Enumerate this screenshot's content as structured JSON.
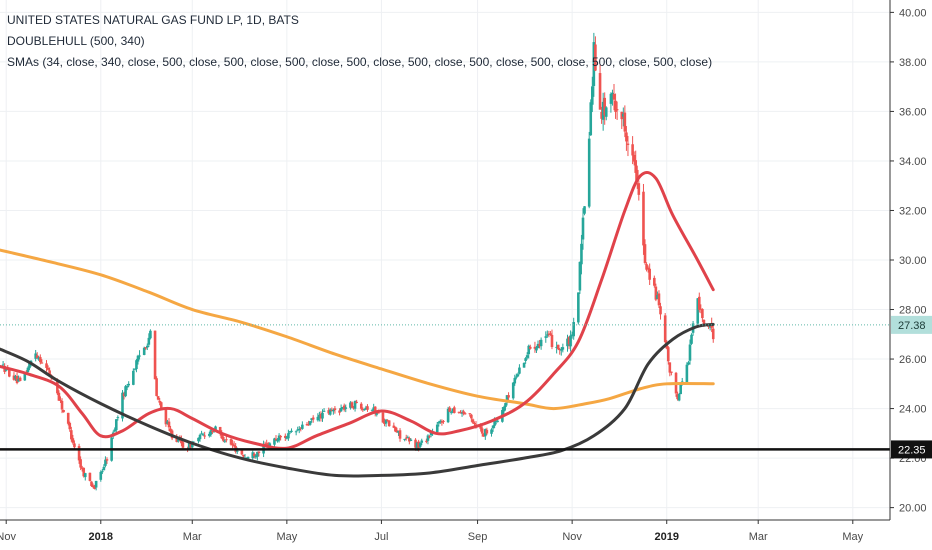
{
  "legend": {
    "title": "UNITED STATES NATURAL GAS FUND LP, 1D, BATS",
    "indicator1": "DOUBLEHULL (500, 340)",
    "indicator2": "SMAs (34, close, 340, close, 500, close, 500, close, 500, close, 500, close, 500, close, 500, close, 500, close, 500, close, 500, close)"
  },
  "colors": {
    "up": "#26a69a",
    "down": "#ef5350",
    "sma_orange": "#f5a743",
    "sma_red": "#e0424a",
    "hull_black": "#3a3a3a",
    "support_line": "#111111",
    "price_line": "#5fb8a8",
    "grid": "#eef0f3",
    "axis": "#333333"
  },
  "chart_data": {
    "type": "candlestick",
    "x_range": [
      "2017-10-28",
      "2019-05-25"
    ],
    "y_range": [
      19.5,
      40.5
    ],
    "y_ticks": [
      "40.00",
      "38.00",
      "36.00",
      "34.00",
      "32.00",
      "30.00",
      "28.00",
      "26.00",
      "24.00",
      "22.00",
      "20.00"
    ],
    "x_ticks": [
      {
        "date": "2017-11-01",
        "label": "Nov",
        "bold": false
      },
      {
        "date": "2018-01-01",
        "label": "2018",
        "bold": true
      },
      {
        "date": "2018-03-01",
        "label": "Mar",
        "bold": false
      },
      {
        "date": "2018-05-01",
        "label": "May",
        "bold": false
      },
      {
        "date": "2018-07-01",
        "label": "Jul",
        "bold": false
      },
      {
        "date": "2018-09-01",
        "label": "Sep",
        "bold": false
      },
      {
        "date": "2018-11-01",
        "label": "Nov",
        "bold": false
      },
      {
        "date": "2019-01-01",
        "label": "2019",
        "bold": true
      },
      {
        "date": "2019-03-01",
        "label": "Mar",
        "bold": false
      },
      {
        "date": "2019-05-01",
        "label": "May",
        "bold": false
      }
    ],
    "price_anchors": [
      [
        "2017-10-28",
        25.8
      ],
      [
        "2017-11-10",
        25.0
      ],
      [
        "2017-11-20",
        26.3
      ],
      [
        "2017-12-01",
        25.2
      ],
      [
        "2017-12-10",
        23.5
      ],
      [
        "2017-12-20",
        21.5
      ],
      [
        "2017-12-28",
        20.8
      ],
      [
        "2018-01-05",
        22.0
      ],
      [
        "2018-01-15",
        24.5
      ],
      [
        "2018-01-25",
        26.0
      ],
      [
        "2018-02-02",
        27.0
      ],
      [
        "2018-02-06",
        24.5
      ],
      [
        "2018-02-15",
        23.0
      ],
      [
        "2018-02-25",
        22.4
      ],
      [
        "2018-03-05",
        22.8
      ],
      [
        "2018-03-15",
        23.2
      ],
      [
        "2018-03-25",
        22.6
      ],
      [
        "2018-04-05",
        22.0
      ],
      [
        "2018-04-15",
        22.4
      ],
      [
        "2018-04-25",
        22.8
      ],
      [
        "2018-05-05",
        23.0
      ],
      [
        "2018-05-15",
        23.4
      ],
      [
        "2018-05-25",
        23.8
      ],
      [
        "2018-06-05",
        24.0
      ],
      [
        "2018-06-15",
        24.2
      ],
      [
        "2018-06-25",
        24.0
      ],
      [
        "2018-07-05",
        23.4
      ],
      [
        "2018-07-15",
        22.8
      ],
      [
        "2018-07-25",
        22.5
      ],
      [
        "2018-08-05",
        23.2
      ],
      [
        "2018-08-15",
        24.0
      ],
      [
        "2018-08-25",
        23.8
      ],
      [
        "2018-09-05",
        23.0
      ],
      [
        "2018-09-15",
        23.6
      ],
      [
        "2018-09-25",
        25.2
      ],
      [
        "2018-10-05",
        26.5
      ],
      [
        "2018-10-15",
        26.9
      ],
      [
        "2018-10-25",
        26.4
      ],
      [
        "2018-11-01",
        26.8
      ],
      [
        "2018-11-05",
        28.9
      ],
      [
        "2018-11-10",
        33.0
      ],
      [
        "2018-11-15",
        38.5
      ],
      [
        "2018-11-20",
        36.0
      ],
      [
        "2018-11-28",
        36.5
      ],
      [
        "2018-12-05",
        35.5
      ],
      [
        "2018-12-12",
        33.5
      ],
      [
        "2018-12-18",
        30.0
      ],
      [
        "2018-12-26",
        28.4
      ],
      [
        "2019-01-03",
        25.5
      ],
      [
        "2019-01-08",
        24.5
      ],
      [
        "2019-01-15",
        26.0
      ],
      [
        "2019-01-20",
        28.5
      ],
      [
        "2019-01-25",
        27.5
      ],
      [
        "2019-01-31",
        27.0
      ]
    ],
    "series": [
      {
        "name": "SMA 500",
        "color_key": "sma_orange",
        "points": [
          [
            "2017-10-28",
            30.4
          ],
          [
            "2017-12-01",
            29.9
          ],
          [
            "2018-01-01",
            29.4
          ],
          [
            "2018-02-01",
            28.7
          ],
          [
            "2018-03-01",
            28.0
          ],
          [
            "2018-04-01",
            27.5
          ],
          [
            "2018-05-01",
            26.9
          ],
          [
            "2018-06-01",
            26.2
          ],
          [
            "2018-07-01",
            25.6
          ],
          [
            "2018-08-01",
            25.0
          ],
          [
            "2018-09-01",
            24.5
          ],
          [
            "2018-10-01",
            24.2
          ],
          [
            "2018-10-20",
            24.0
          ],
          [
            "2018-11-10",
            24.2
          ],
          [
            "2018-11-25",
            24.4
          ],
          [
            "2018-12-15",
            24.8
          ],
          [
            "2019-01-01",
            25.0
          ],
          [
            "2019-01-31",
            25.0
          ]
        ]
      },
      {
        "name": "SMA 34",
        "color_key": "sma_red",
        "points": [
          [
            "2017-10-28",
            25.7
          ],
          [
            "2017-11-15",
            25.4
          ],
          [
            "2017-12-05",
            24.9
          ],
          [
            "2017-12-20",
            23.8
          ],
          [
            "2018-01-01",
            22.9
          ],
          [
            "2018-01-15",
            23.1
          ],
          [
            "2018-02-01",
            23.8
          ],
          [
            "2018-02-15",
            24.0
          ],
          [
            "2018-03-01",
            23.6
          ],
          [
            "2018-03-20",
            23.0
          ],
          [
            "2018-04-10",
            22.6
          ],
          [
            "2018-05-01",
            22.4
          ],
          [
            "2018-05-20",
            22.9
          ],
          [
            "2018-06-10",
            23.4
          ],
          [
            "2018-07-01",
            23.9
          ],
          [
            "2018-07-20",
            23.5
          ],
          [
            "2018-08-05",
            23.0
          ],
          [
            "2018-08-20",
            23.1
          ],
          [
            "2018-09-10",
            23.5
          ],
          [
            "2018-10-01",
            24.2
          ],
          [
            "2018-10-20",
            25.4
          ],
          [
            "2018-11-05",
            26.7
          ],
          [
            "2018-11-20",
            29.2
          ],
          [
            "2018-12-05",
            32.0
          ],
          [
            "2018-12-15",
            33.4
          ],
          [
            "2018-12-25",
            33.3
          ],
          [
            "2019-01-05",
            31.8
          ],
          [
            "2019-01-20",
            30.1
          ],
          [
            "2019-01-31",
            28.8
          ]
        ]
      },
      {
        "name": "DOUBLEHULL",
        "color_key": "hull_black",
        "points": [
          [
            "2017-10-28",
            26.4
          ],
          [
            "2017-11-15",
            25.9
          ],
          [
            "2017-12-05",
            25.1
          ],
          [
            "2018-01-01",
            24.2
          ],
          [
            "2018-02-01",
            23.3
          ],
          [
            "2018-03-01",
            22.6
          ],
          [
            "2018-04-01",
            22.0
          ],
          [
            "2018-05-01",
            21.6
          ],
          [
            "2018-06-01",
            21.3
          ],
          [
            "2018-07-01",
            21.3
          ],
          [
            "2018-08-01",
            21.4
          ],
          [
            "2018-09-01",
            21.7
          ],
          [
            "2018-10-01",
            22.0
          ],
          [
            "2018-10-25",
            22.3
          ],
          [
            "2018-11-15",
            22.9
          ],
          [
            "2018-12-05",
            24.0
          ],
          [
            "2018-12-20",
            25.8
          ],
          [
            "2019-01-05",
            26.8
          ],
          [
            "2019-01-20",
            27.3
          ],
          [
            "2019-01-31",
            27.4
          ]
        ]
      }
    ],
    "support_level": 22.35,
    "support_label": "22.35",
    "last_price": 27.38,
    "last_label": "27.38",
    "last_date": "2019-01-31"
  }
}
